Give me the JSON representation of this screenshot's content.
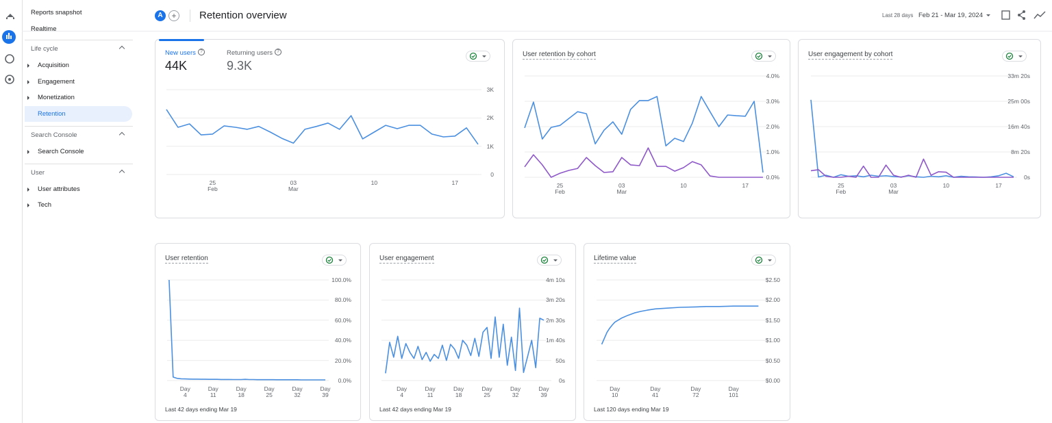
{
  "nav": {
    "items": [
      "Reports snapshot",
      "Realtime"
    ],
    "sections": [
      {
        "title": "Life cycle",
        "items": [
          "Acquisition",
          "Engagement",
          "Monetization",
          "Retention"
        ]
      },
      {
        "title": "Search Console",
        "items": [
          "Search Console"
        ]
      },
      {
        "title": "User",
        "items": [
          "User attributes",
          "Tech"
        ]
      }
    ]
  },
  "header": {
    "avatar": "A",
    "title": "Retention overview",
    "date_preset": "Last 28 days",
    "date_range": "Feb 21 - Mar 19, 2024"
  },
  "chart_data": [
    {
      "type": "line",
      "tabs": [
        {
          "label": "New users",
          "value": "44K"
        },
        {
          "label": "Returning users",
          "value": "9.3K"
        }
      ],
      "categories": [
        null,
        null,
        null,
        null,
        "25 Feb",
        null,
        null,
        null,
        null,
        null,
        null,
        "03 Mar",
        null,
        null,
        null,
        null,
        null,
        null,
        "10",
        null,
        null,
        null,
        null,
        null,
        null,
        "17",
        null,
        null
      ],
      "series": [
        {
          "color": "#4a8fe0",
          "values": [
            2300,
            1670,
            1790,
            1400,
            1430,
            1720,
            1670,
            1600,
            1700,
            1500,
            1280,
            1110,
            1600,
            1700,
            1820,
            1600,
            2080,
            1260,
            1500,
            1740,
            1620,
            1740,
            1740,
            1430,
            1330,
            1360,
            1650,
            1070
          ]
        }
      ],
      "ylim": [
        0,
        3000
      ],
      "yticks": [
        0,
        {
          "value": 1000,
          "label": "1K"
        },
        {
          "value": 2000,
          "label": "2K"
        },
        {
          "value": 3000,
          "label": "3K"
        }
      ],
      "grid": true
    },
    {
      "type": "line",
      "title": "User retention by cohort",
      "categories": [
        null,
        null,
        null,
        null,
        "25 Feb",
        null,
        null,
        null,
        null,
        null,
        null,
        "03 Mar",
        null,
        null,
        null,
        null,
        null,
        null,
        "10",
        null,
        null,
        null,
        null,
        null,
        null,
        "17",
        null,
        null
      ],
      "series": [
        {
          "color": "#4a8fe0",
          "values": [
            1.95,
            2.97,
            1.51,
            1.97,
            2.05,
            2.32,
            2.59,
            2.51,
            1.32,
            1.86,
            2.19,
            1.7,
            2.68,
            3.03,
            3.03,
            3.19,
            1.24,
            1.54,
            1.41,
            2.14,
            3.19,
            2.59,
            2.0,
            2.46,
            2.43,
            2.41,
            3.0,
            0.19
          ]
        },
        {
          "color": "#8e58c8",
          "values": [
            0.41,
            0.89,
            0.49,
            0,
            0.16,
            0.27,
            0.35,
            0.78,
            0.46,
            0.19,
            0.22,
            0.78,
            0.49,
            0.46,
            1.16,
            0.43,
            0.43,
            0.24,
            0.38,
            0.62,
            0.49,
            0.05,
            0,
            0,
            0,
            0,
            0,
            0
          ]
        }
      ],
      "ylim": [
        0,
        4
      ],
      "yticks": [
        {
          "value": 0,
          "label": "0.0%"
        },
        {
          "value": 1,
          "label": "1.0%"
        },
        {
          "value": 2,
          "label": "2.0%"
        },
        {
          "value": 3,
          "label": "3.0%"
        },
        {
          "value": 4,
          "label": "4.0%"
        }
      ],
      "grid": true
    },
    {
      "type": "line",
      "title": "User engagement by cohort",
      "categories": [
        null,
        null,
        null,
        null,
        "25 Feb",
        null,
        null,
        null,
        null,
        null,
        null,
        "03 Mar",
        null,
        null,
        null,
        null,
        null,
        null,
        "10",
        null,
        null,
        null,
        null,
        null,
        null,
        "17",
        null,
        null
      ],
      "series": [
        {
          "color": "#4a8fe0",
          "values": [
            1530,
            5,
            40,
            0,
            50,
            20,
            30,
            10,
            40,
            20,
            30,
            15,
            5,
            30,
            10,
            0,
            20,
            10,
            30,
            0,
            20,
            10,
            5,
            0,
            10,
            30,
            80,
            10
          ]
        },
        {
          "color": "#8e58c8",
          "values": [
            130,
            150,
            20,
            0,
            0,
            20,
            0,
            220,
            0,
            0,
            240,
            40,
            0,
            40,
            0,
            360,
            40,
            110,
            100,
            0,
            0,
            0,
            0,
            0,
            0,
            0,
            0,
            0
          ]
        }
      ],
      "ylim": [
        0,
        2000
      ],
      "yticks": [
        {
          "value": 0,
          "label": "0s"
        },
        {
          "value": 500,
          "label": "8m 20s"
        },
        {
          "value": 1000,
          "label": "16m 40s"
        },
        {
          "value": 1500,
          "label": "25m 00s"
        },
        {
          "value": 2000,
          "label": "33m 20s"
        }
      ],
      "grid": true
    },
    {
      "type": "line",
      "title": "User retention",
      "footer": "Last 42 days ending Mar 19",
      "x": [
        0,
        1,
        2,
        3,
        4,
        5,
        6,
        7,
        8,
        9,
        10,
        11,
        12,
        13,
        14,
        15,
        16,
        17,
        18,
        19,
        20,
        21,
        22,
        23,
        24,
        25,
        26,
        27,
        28,
        29,
        30,
        31,
        32,
        33,
        34,
        35,
        36,
        37,
        38,
        39
      ],
      "series": [
        {
          "color": "#4a8fe0",
          "values": [
            100,
            3.5,
            2.2,
            1.8,
            1.6,
            1.5,
            1.4,
            1.4,
            1.3,
            1.3,
            1.2,
            1.2,
            1.2,
            1.1,
            1.1,
            1.1,
            1.0,
            1.0,
            1.0,
            1.2,
            1.0,
            1.0,
            0.9,
            0.9,
            0.9,
            0.9,
            0.9,
            0.8,
            0.8,
            0.8,
            0.8,
            0.8,
            0.8,
            0.7,
            0.7,
            0.7,
            0.7,
            0.7,
            0.7,
            0.7
          ]
        }
      ],
      "xlim": [
        -0.5,
        39
      ],
      "xticks": [
        {
          "value": 4,
          "label": "Day 4"
        },
        {
          "value": 11,
          "label": "Day 11"
        },
        {
          "value": 18,
          "label": "Day 18"
        },
        {
          "value": 25,
          "label": "Day 25"
        },
        {
          "value": 32,
          "label": "Day 32"
        },
        {
          "value": 39,
          "label": "Day 39"
        }
      ],
      "ylim": [
        0,
        100
      ],
      "yticks": [
        {
          "value": 0,
          "label": "0.0%"
        },
        {
          "value": 20,
          "label": "20.0%"
        },
        {
          "value": 40,
          "label": "40.0%"
        },
        {
          "value": 60,
          "label": "60.0%"
        },
        {
          "value": 80,
          "label": "80.0%"
        },
        {
          "value": 100,
          "label": "100.0%"
        }
      ],
      "grid": true
    },
    {
      "type": "line",
      "title": "User engagement",
      "footer": "Last 42 days ending Mar 19",
      "x": [
        0,
        1,
        2,
        3,
        4,
        5,
        6,
        7,
        8,
        9,
        10,
        11,
        12,
        13,
        14,
        15,
        16,
        17,
        18,
        19,
        20,
        21,
        22,
        23,
        24,
        25,
        26,
        27,
        28,
        29,
        30,
        31,
        32,
        33,
        34,
        35,
        36,
        37,
        38,
        39
      ],
      "series": [
        {
          "color": "#4a8fe0",
          "values": [
            18,
            95,
            58,
            110,
            55,
            92,
            70,
            55,
            85,
            52,
            70,
            48,
            65,
            55,
            88,
            50,
            90,
            78,
            55,
            100,
            88,
            62,
            105,
            60,
            120,
            132,
            55,
            158,
            58,
            140,
            38,
            108,
            25,
            180,
            20,
            60,
            100,
            32,
            155,
            150
          ]
        }
      ],
      "xlim": [
        -1,
        40
      ],
      "xticks": [
        {
          "value": 4,
          "label": "Day 4"
        },
        {
          "value": 11,
          "label": "Day 11"
        },
        {
          "value": 18,
          "label": "Day 18"
        },
        {
          "value": 25,
          "label": "Day 25"
        },
        {
          "value": 32,
          "label": "Day 32"
        },
        {
          "value": 39,
          "label": "Day 39"
        }
      ],
      "ylim": [
        0,
        250
      ],
      "yticks": [
        {
          "value": 0,
          "label": "0s"
        },
        {
          "value": 50,
          "label": "50s"
        },
        {
          "value": 100,
          "label": "1m 40s"
        },
        {
          "value": 150,
          "label": "2m 30s"
        },
        {
          "value": 200,
          "label": "3m 20s"
        },
        {
          "value": 250,
          "label": "4m 10s"
        }
      ],
      "grid": true
    },
    {
      "type": "line",
      "title": "Lifetime value",
      "footer": "Last 120 days ending Mar 19",
      "x": [
        0,
        2,
        4,
        6,
        8,
        10,
        15,
        20,
        25,
        30,
        35,
        41,
        50,
        60,
        72,
        80,
        90,
        101,
        110,
        120
      ],
      "series": [
        {
          "color": "#4a8fe0",
          "values": [
            0.9,
            1.05,
            1.2,
            1.3,
            1.38,
            1.45,
            1.55,
            1.62,
            1.68,
            1.72,
            1.75,
            1.78,
            1.8,
            1.82,
            1.83,
            1.84,
            1.84,
            1.85,
            1.85,
            1.85
          ]
        }
      ],
      "xlim": [
        -4,
        124
      ],
      "xticks": [
        {
          "value": 10,
          "label": "Day 10"
        },
        {
          "value": 41,
          "label": "Day 41"
        },
        {
          "value": 72,
          "label": "Day 72"
        },
        {
          "value": 101,
          "label": "Day 101"
        }
      ],
      "ylim": [
        0,
        2.5
      ],
      "yticks": [
        {
          "value": 0,
          "label": "$0.00"
        },
        {
          "value": 0.5,
          "label": "$0.50"
        },
        {
          "value": 1,
          "label": "$1.00"
        },
        {
          "value": 1.5,
          "label": "$1.50"
        },
        {
          "value": 2,
          "label": "$2.00"
        },
        {
          "value": 2.5,
          "label": "$2.50"
        }
      ],
      "grid": true
    }
  ]
}
